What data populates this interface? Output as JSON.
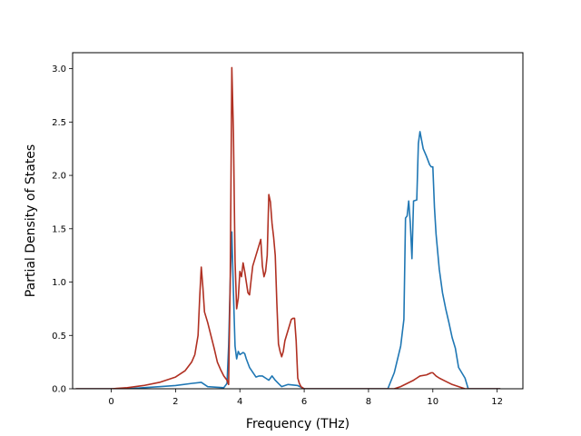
{
  "chart_data": {
    "type": "line",
    "title": "",
    "xlabel": "Frequency (THz)",
    "ylabel": "Partial Density of States",
    "xlim": [
      -1.2,
      12.8
    ],
    "ylim": [
      0.0,
      3.15
    ],
    "xticks": [
      0,
      2,
      4,
      6,
      8,
      10,
      12
    ],
    "xtick_labels": [
      "0",
      "2",
      "4",
      "6",
      "8",
      "10",
      "12"
    ],
    "yticks": [
      0.0,
      0.5,
      1.0,
      1.5,
      2.0,
      2.5,
      3.0
    ],
    "ytick_labels": [
      "0.0",
      "0.5",
      "1.0",
      "1.5",
      "2.0",
      "2.5",
      "3.0"
    ],
    "grid": false,
    "series": [
      {
        "color": "#1f77b4",
        "x": [
          -1.1,
          0,
          0.5,
          1,
          1.5,
          2,
          2.5,
          2.8,
          3.0,
          3.5,
          3.6,
          3.65,
          3.7,
          3.75,
          3.8,
          3.85,
          3.9,
          3.95,
          4.0,
          4.05,
          4.1,
          4.15,
          4.2,
          4.3,
          4.5,
          4.6,
          4.7,
          4.8,
          4.9,
          5.0,
          5.1,
          5.2,
          5.3,
          5.5,
          5.8,
          6.0,
          6.3,
          8.0,
          8.6,
          8.8,
          9.0,
          9.1,
          9.15,
          9.2,
          9.25,
          9.3,
          9.35,
          9.4,
          9.5,
          9.55,
          9.6,
          9.7,
          9.8,
          9.9,
          9.95,
          10.0,
          10.05,
          10.1,
          10.2,
          10.3,
          10.4,
          10.5,
          10.6,
          10.7,
          10.8,
          10.9,
          11.0,
          11.1,
          11.5,
          12.1
        ],
        "y": [
          0.0,
          0.0,
          0.0,
          0.01,
          0.02,
          0.03,
          0.05,
          0.06,
          0.02,
          0.01,
          0.05,
          0.4,
          1.0,
          1.47,
          0.9,
          0.4,
          0.28,
          0.35,
          0.32,
          0.33,
          0.34,
          0.33,
          0.28,
          0.2,
          0.11,
          0.12,
          0.12,
          0.1,
          0.08,
          0.12,
          0.08,
          0.05,
          0.02,
          0.04,
          0.03,
          0.0,
          0.0,
          0.0,
          0.0,
          0.15,
          0.4,
          0.65,
          1.6,
          1.62,
          1.76,
          1.55,
          1.22,
          1.76,
          1.77,
          2.3,
          2.41,
          2.25,
          2.18,
          2.1,
          2.08,
          2.08,
          1.7,
          1.45,
          1.12,
          0.9,
          0.75,
          0.62,
          0.48,
          0.38,
          0.2,
          0.15,
          0.1,
          0.0,
          0.0,
          0.0
        ]
      },
      {
        "color": "#b03022",
        "x": [
          -1.1,
          0,
          0.5,
          1,
          1.5,
          2,
          2.3,
          2.5,
          2.6,
          2.7,
          2.75,
          2.8,
          2.85,
          2.9,
          3.0,
          3.1,
          3.2,
          3.3,
          3.4,
          3.5,
          3.6,
          3.65,
          3.7,
          3.75,
          3.8,
          3.85,
          3.9,
          3.95,
          4.0,
          4.05,
          4.1,
          4.15,
          4.2,
          4.25,
          4.3,
          4.35,
          4.4,
          4.5,
          4.6,
          4.65,
          4.7,
          4.75,
          4.8,
          4.85,
          4.9,
          4.95,
          5.0,
          5.05,
          5.1,
          5.15,
          5.2,
          5.25,
          5.3,
          5.35,
          5.4,
          5.5,
          5.6,
          5.65,
          5.7,
          5.75,
          5.8,
          5.85,
          5.9,
          6.0,
          8.0,
          8.8,
          9.0,
          9.2,
          9.4,
          9.5,
          9.6,
          9.8,
          9.95,
          10.0,
          10.1,
          10.2,
          10.4,
          10.6,
          10.8,
          11.0,
          12.1
        ],
        "y": [
          0.0,
          0.0,
          0.01,
          0.03,
          0.06,
          0.11,
          0.17,
          0.25,
          0.32,
          0.5,
          0.85,
          1.14,
          0.95,
          0.72,
          0.62,
          0.5,
          0.38,
          0.25,
          0.18,
          0.12,
          0.08,
          0.04,
          1.0,
          3.01,
          2.4,
          1.2,
          0.75,
          0.85,
          1.1,
          1.05,
          1.18,
          1.1,
          1.0,
          0.9,
          0.88,
          1.02,
          1.15,
          1.25,
          1.35,
          1.4,
          1.15,
          1.05,
          1.1,
          1.25,
          1.82,
          1.75,
          1.55,
          1.42,
          1.25,
          0.8,
          0.42,
          0.35,
          0.3,
          0.35,
          0.45,
          0.55,
          0.65,
          0.66,
          0.66,
          0.45,
          0.1,
          0.05,
          0.02,
          0.0,
          0.0,
          0.0,
          0.02,
          0.05,
          0.08,
          0.1,
          0.12,
          0.13,
          0.15,
          0.15,
          0.12,
          0.1,
          0.07,
          0.04,
          0.02,
          0.0,
          0.0
        ]
      }
    ]
  }
}
